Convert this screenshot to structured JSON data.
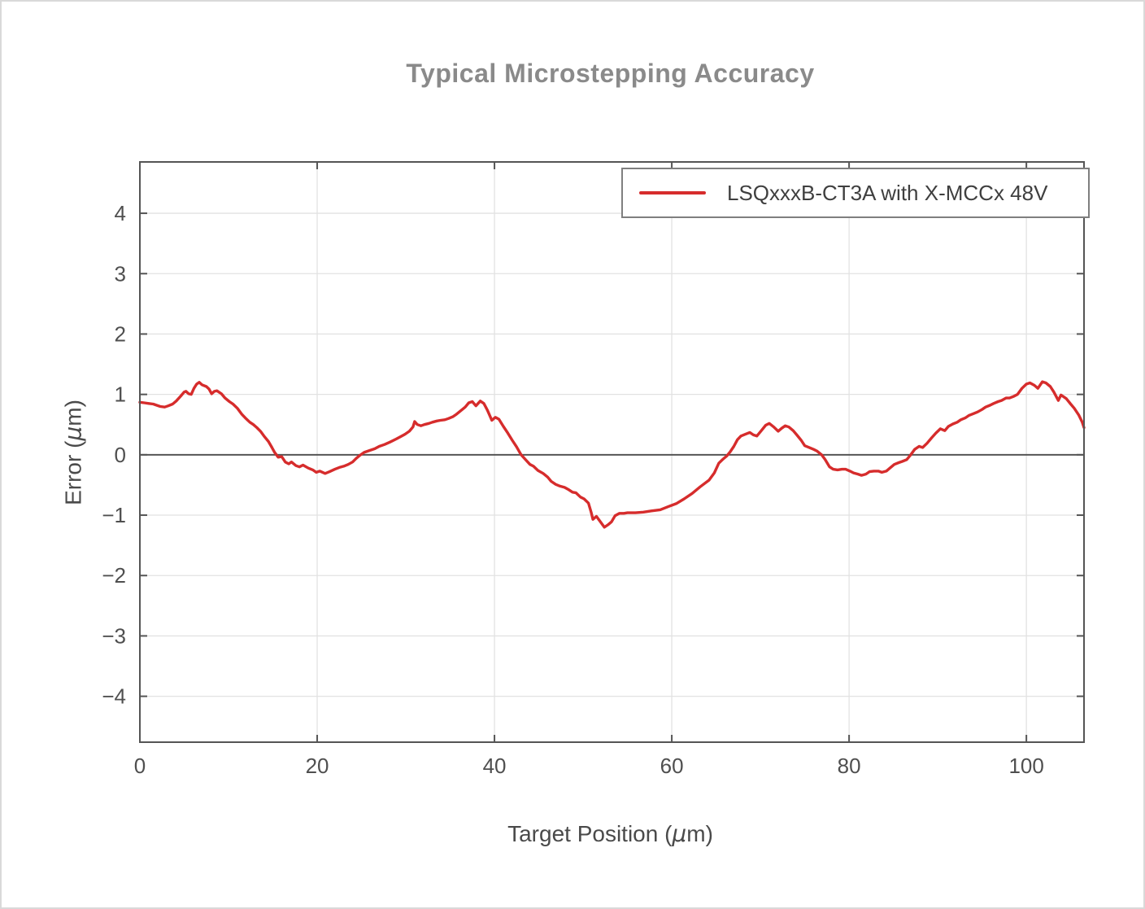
{
  "colors": {
    "background": "#ffffff",
    "title_text": "#8a8a8a",
    "axis_text": "#4f4f4f",
    "axis_label_text": "#4a4a4a",
    "frame": "#555555",
    "grid": "#e2e2e2",
    "zero_line": "#555555",
    "series_red": "#d62c2c",
    "legend_border": "#7f7f7f",
    "legend_text": "#3f3f3f"
  },
  "chart_data": {
    "type": "line",
    "title": "Typical Microstepping Accuracy",
    "xlabel": "Target Position (μm)",
    "ylabel": "Error (μm)",
    "xlabel_parts": {
      "pre": "Target Position (",
      "mu": "μ",
      "post": "m)"
    },
    "ylabel_parts": {
      "pre": "Error (",
      "mu": "μ",
      "post": "m)"
    },
    "xlim": [
      0,
      106.5
    ],
    "ylim": [
      -4.76,
      4.85
    ],
    "x_ticks": [
      0,
      20,
      40,
      60,
      80,
      100
    ],
    "x_tick_labels": [
      "0",
      "20",
      "40",
      "60",
      "80",
      "100"
    ],
    "y_ticks": [
      -4,
      -3,
      -2,
      -1,
      0,
      1,
      2,
      3,
      4
    ],
    "y_tick_labels": [
      "−4",
      "−3",
      "−2",
      "−1",
      "0",
      "1",
      "2",
      "3",
      "4"
    ],
    "grid": true,
    "zero_line": true,
    "legend": {
      "position": "top-right",
      "entries": [
        {
          "label": "LSQxxxB-CT3A with X-MCCx 48V",
          "color": "#d62c2c"
        }
      ]
    },
    "series": [
      {
        "name": "LSQxxxB-CT3A with X-MCCx 48V",
        "color": "#d62c2c",
        "points": [
          [
            0,
            0.87
          ],
          [
            0.5,
            0.86
          ],
          [
            1,
            0.85
          ],
          [
            1.5,
            0.84
          ],
          [
            1.9,
            0.82
          ],
          [
            2.3,
            0.8
          ],
          [
            2.8,
            0.79
          ],
          [
            3.2,
            0.81
          ],
          [
            3.7,
            0.84
          ],
          [
            4.1,
            0.89
          ],
          [
            4.6,
            0.97
          ],
          [
            5.0,
            1.04
          ],
          [
            5.2,
            1.05
          ],
          [
            5.5,
            1.01
          ],
          [
            5.8,
            1.0
          ],
          [
            6.1,
            1.1
          ],
          [
            6.4,
            1.17
          ],
          [
            6.7,
            1.2
          ],
          [
            7.0,
            1.16
          ],
          [
            7.5,
            1.13
          ],
          [
            7.8,
            1.09
          ],
          [
            8.1,
            1.01
          ],
          [
            8.4,
            1.05
          ],
          [
            8.7,
            1.06
          ],
          [
            9.2,
            1.01
          ],
          [
            9.6,
            0.94
          ],
          [
            10.1,
            0.88
          ],
          [
            10.5,
            0.84
          ],
          [
            11.0,
            0.77
          ],
          [
            11.5,
            0.67
          ],
          [
            11.9,
            0.61
          ],
          [
            12.4,
            0.54
          ],
          [
            12.8,
            0.5
          ],
          [
            13.2,
            0.45
          ],
          [
            13.6,
            0.39
          ],
          [
            14.0,
            0.31
          ],
          [
            14.5,
            0.22
          ],
          [
            14.9,
            0.12
          ],
          [
            15.2,
            0.04
          ],
          [
            15.6,
            -0.04
          ],
          [
            16.0,
            -0.03
          ],
          [
            16.4,
            -0.12
          ],
          [
            16.8,
            -0.15
          ],
          [
            17.1,
            -0.12
          ],
          [
            17.6,
            -0.18
          ],
          [
            18.0,
            -0.2
          ],
          [
            18.4,
            -0.17
          ],
          [
            19.0,
            -0.22
          ],
          [
            19.5,
            -0.25
          ],
          [
            19.9,
            -0.29
          ],
          [
            20.3,
            -0.27
          ],
          [
            20.9,
            -0.31
          ],
          [
            21.4,
            -0.28
          ],
          [
            22.0,
            -0.24
          ],
          [
            22.5,
            -0.21
          ],
          [
            23.0,
            -0.19
          ],
          [
            23.5,
            -0.16
          ],
          [
            24.0,
            -0.12
          ],
          [
            24.4,
            -0.06
          ],
          [
            24.8,
            -0.01
          ],
          [
            25.3,
            0.04
          ],
          [
            25.9,
            0.07
          ],
          [
            26.5,
            0.1
          ],
          [
            27.0,
            0.14
          ],
          [
            27.6,
            0.17
          ],
          [
            28.2,
            0.21
          ],
          [
            28.9,
            0.26
          ],
          [
            29.4,
            0.3
          ],
          [
            29.9,
            0.34
          ],
          [
            30.4,
            0.39
          ],
          [
            30.8,
            0.46
          ],
          [
            31.0,
            0.55
          ],
          [
            31.3,
            0.5
          ],
          [
            31.7,
            0.48
          ],
          [
            32.1,
            0.5
          ],
          [
            32.6,
            0.52
          ],
          [
            33.0,
            0.54
          ],
          [
            33.5,
            0.56
          ],
          [
            33.9,
            0.57
          ],
          [
            34.4,
            0.58
          ],
          [
            34.8,
            0.6
          ],
          [
            35.3,
            0.63
          ],
          [
            35.7,
            0.67
          ],
          [
            36.2,
            0.73
          ],
          [
            36.7,
            0.79
          ],
          [
            37.1,
            0.86
          ],
          [
            37.5,
            0.88
          ],
          [
            37.9,
            0.81
          ],
          [
            38.4,
            0.89
          ],
          [
            38.8,
            0.85
          ],
          [
            39.2,
            0.74
          ],
          [
            39.7,
            0.57
          ],
          [
            40.1,
            0.62
          ],
          [
            40.5,
            0.59
          ],
          [
            41.0,
            0.47
          ],
          [
            41.5,
            0.36
          ],
          [
            42.0,
            0.24
          ],
          [
            42.5,
            0.13
          ],
          [
            43.0,
            0.0
          ],
          [
            43.5,
            -0.08
          ],
          [
            44.0,
            -0.16
          ],
          [
            44.4,
            -0.19
          ],
          [
            44.9,
            -0.26
          ],
          [
            45.5,
            -0.31
          ],
          [
            46.0,
            -0.37
          ],
          [
            46.4,
            -0.44
          ],
          [
            46.9,
            -0.49
          ],
          [
            47.4,
            -0.52
          ],
          [
            47.9,
            -0.54
          ],
          [
            48.4,
            -0.58
          ],
          [
            48.8,
            -0.62
          ],
          [
            49.2,
            -0.63
          ],
          [
            49.7,
            -0.7
          ],
          [
            50.1,
            -0.73
          ],
          [
            50.6,
            -0.8
          ],
          [
            50.9,
            -0.95
          ],
          [
            51.1,
            -1.07
          ],
          [
            51.5,
            -1.02
          ],
          [
            51.9,
            -1.1
          ],
          [
            52.4,
            -1.2
          ],
          [
            52.8,
            -1.16
          ],
          [
            53.2,
            -1.11
          ],
          [
            53.6,
            -1.01
          ],
          [
            54.1,
            -0.97
          ],
          [
            54.6,
            -0.97
          ],
          [
            55.0,
            -0.96
          ],
          [
            55.9,
            -0.96
          ],
          [
            56.8,
            -0.95
          ],
          [
            57.7,
            -0.93
          ],
          [
            58.7,
            -0.91
          ],
          [
            59.6,
            -0.86
          ],
          [
            60.5,
            -0.81
          ],
          [
            61.4,
            -0.73
          ],
          [
            62.3,
            -0.64
          ],
          [
            63.2,
            -0.53
          ],
          [
            64.2,
            -0.42
          ],
          [
            64.8,
            -0.3
          ],
          [
            65.3,
            -0.14
          ],
          [
            65.8,
            -0.07
          ],
          [
            66.2,
            -0.02
          ],
          [
            66.6,
            0.05
          ],
          [
            67.0,
            0.14
          ],
          [
            67.4,
            0.25
          ],
          [
            67.8,
            0.31
          ],
          [
            68.3,
            0.34
          ],
          [
            68.8,
            0.37
          ],
          [
            69.2,
            0.33
          ],
          [
            69.6,
            0.31
          ],
          [
            70.1,
            0.4
          ],
          [
            70.6,
            0.49
          ],
          [
            71.0,
            0.52
          ],
          [
            71.5,
            0.46
          ],
          [
            72.0,
            0.39
          ],
          [
            72.4,
            0.44
          ],
          [
            72.8,
            0.48
          ],
          [
            73.2,
            0.46
          ],
          [
            73.7,
            0.4
          ],
          [
            74.1,
            0.33
          ],
          [
            74.6,
            0.24
          ],
          [
            75.0,
            0.15
          ],
          [
            75.5,
            0.12
          ],
          [
            76.0,
            0.09
          ],
          [
            76.4,
            0.06
          ],
          [
            76.9,
            0.0
          ],
          [
            77.3,
            -0.08
          ],
          [
            77.8,
            -0.2
          ],
          [
            78.2,
            -0.24
          ],
          [
            78.7,
            -0.25
          ],
          [
            79.2,
            -0.24
          ],
          [
            79.6,
            -0.24
          ],
          [
            80.1,
            -0.27
          ],
          [
            80.5,
            -0.3
          ],
          [
            81.0,
            -0.32
          ],
          [
            81.4,
            -0.34
          ],
          [
            81.9,
            -0.32
          ],
          [
            82.3,
            -0.28
          ],
          [
            82.8,
            -0.27
          ],
          [
            83.3,
            -0.27
          ],
          [
            83.7,
            -0.29
          ],
          [
            84.2,
            -0.27
          ],
          [
            84.6,
            -0.22
          ],
          [
            85.1,
            -0.16
          ],
          [
            85.6,
            -0.13
          ],
          [
            86.0,
            -0.11
          ],
          [
            86.5,
            -0.08
          ],
          [
            86.9,
            -0.01
          ],
          [
            87.4,
            0.09
          ],
          [
            87.9,
            0.14
          ],
          [
            88.3,
            0.12
          ],
          [
            88.8,
            0.19
          ],
          [
            89.3,
            0.28
          ],
          [
            89.8,
            0.36
          ],
          [
            90.3,
            0.43
          ],
          [
            90.8,
            0.4
          ],
          [
            91.2,
            0.47
          ],
          [
            91.7,
            0.51
          ],
          [
            92.2,
            0.54
          ],
          [
            92.6,
            0.58
          ],
          [
            93.1,
            0.61
          ],
          [
            93.5,
            0.65
          ],
          [
            94.0,
            0.68
          ],
          [
            94.5,
            0.71
          ],
          [
            95.0,
            0.75
          ],
          [
            95.4,
            0.79
          ],
          [
            95.9,
            0.82
          ],
          [
            96.3,
            0.85
          ],
          [
            96.8,
            0.88
          ],
          [
            97.2,
            0.9
          ],
          [
            97.7,
            0.94
          ],
          [
            98.1,
            0.94
          ],
          [
            98.6,
            0.97
          ],
          [
            99.0,
            1.0
          ],
          [
            99.5,
            1.1
          ],
          [
            100.0,
            1.17
          ],
          [
            100.4,
            1.19
          ],
          [
            100.9,
            1.15
          ],
          [
            101.3,
            1.1
          ],
          [
            101.8,
            1.21
          ],
          [
            102.2,
            1.19
          ],
          [
            102.7,
            1.13
          ],
          [
            103.1,
            1.04
          ],
          [
            103.6,
            0.9
          ],
          [
            103.9,
            0.99
          ],
          [
            104.5,
            0.93
          ],
          [
            105.0,
            0.84
          ],
          [
            105.4,
            0.77
          ],
          [
            105.9,
            0.66
          ],
          [
            106.3,
            0.54
          ],
          [
            106.5,
            0.45
          ]
        ]
      }
    ]
  }
}
